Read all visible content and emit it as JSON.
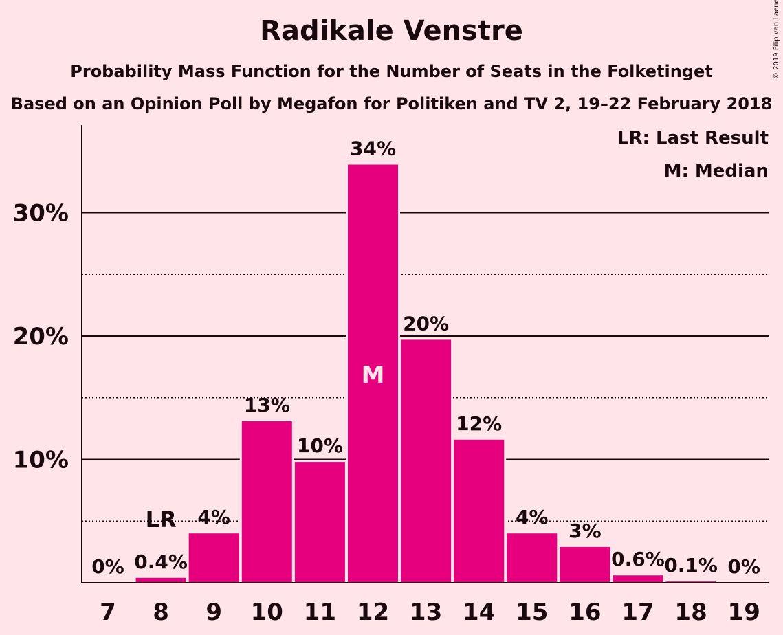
{
  "title": "Radikale Venstre",
  "subtitle": "Probability Mass Function for the Number of Seats in the Folketinget",
  "subtitle2": "Based on an Opinion Poll by Megafon for Politiken and TV 2, 19–22 February 2018",
  "copyright": "© 2019 Filip van Laenen",
  "legend": {
    "last_result": "LR: Last Result",
    "median": "M: Median"
  },
  "colors": {
    "bar": "#E6007E",
    "background": "#FFE5EA"
  },
  "chart_data": {
    "type": "bar",
    "categories": [
      "7",
      "8",
      "9",
      "10",
      "11",
      "12",
      "13",
      "14",
      "15",
      "16",
      "17",
      "18",
      "19"
    ],
    "values": [
      0,
      0.4,
      4,
      13.1,
      9.8,
      33.9,
      19.7,
      11.6,
      4,
      2.9,
      0.6,
      0.1,
      0
    ],
    "value_labels": [
      "0%",
      "0.4%",
      "4%",
      "13%",
      "10%",
      "34%",
      "20%",
      "12%",
      "4%",
      "3%",
      "0.6%",
      "0.1%",
      "0%"
    ],
    "y_ticks": [
      {
        "value": 10,
        "label": "10%"
      },
      {
        "value": 20,
        "label": "20%"
      },
      {
        "value": 30,
        "label": "30%"
      }
    ],
    "minor_gridlines": [
      5,
      15,
      25
    ],
    "ylim": [
      0,
      37
    ],
    "last_result": {
      "category": "8",
      "label": "LR"
    },
    "median": {
      "category": "12",
      "label": "M"
    },
    "legend_position": "top-right",
    "grid": true
  }
}
